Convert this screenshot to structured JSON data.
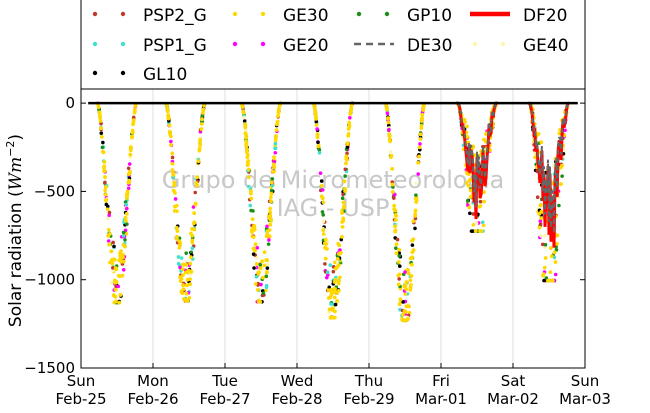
{
  "chart_data": {
    "type": "scatter",
    "ylabel": "Solar radiation (W m^-2)",
    "ylabel_parts": {
      "prefix": "Solar radiation (",
      "unit_italic": "Wm",
      "unit_exp": "−2",
      "suffix": ")"
    },
    "ylim": [
      -1500,
      80
    ],
    "yticks": [
      0,
      -500,
      -1000,
      -1500
    ],
    "ytick_labels": [
      "0",
      "−500",
      "−1000",
      "−1500"
    ],
    "xlim": [
      0,
      7
    ],
    "xticks": [
      {
        "x": 0,
        "day": "Sun",
        "date": "Feb-25"
      },
      {
        "x": 1,
        "day": "Mon",
        "date": "Feb-26"
      },
      {
        "x": 2,
        "day": "Tue",
        "date": "Feb-27"
      },
      {
        "x": 3,
        "day": "Wed",
        "date": "Feb-28"
      },
      {
        "x": 4,
        "day": "Thu",
        "date": "Feb-29"
      },
      {
        "x": 5,
        "day": "Fri",
        "date": "Mar-01"
      },
      {
        "x": 6,
        "day": "Sat",
        "date": "Mar-02"
      },
      {
        "x": 7,
        "day": "Sun",
        "date": "Mar-03"
      }
    ],
    "grid": {
      "vertical": true,
      "horizontal": false
    },
    "legend_position": "top",
    "legend_entries": [
      {
        "key": "psp2",
        "label": "PSP2_G",
        "color": "#c0392b",
        "style": "dots"
      },
      {
        "key": "ge30",
        "label": "GE30",
        "color": "#ffd800",
        "style": "dots"
      },
      {
        "key": "gp10",
        "label": "GP10",
        "color": "#1a8f1a",
        "style": "dots"
      },
      {
        "key": "df20",
        "label": "DF20",
        "color": "#ff0000",
        "style": "thick-line"
      },
      {
        "key": "psp1",
        "label": "PSP1_G",
        "color": "#40e0d0",
        "style": "dots"
      },
      {
        "key": "ge20",
        "label": "GE20",
        "color": "#ff00ff",
        "style": "dots"
      },
      {
        "key": "de30",
        "label": "DE30",
        "color": "#666666",
        "style": "dashed-line"
      },
      {
        "key": "ge40",
        "label": "GE40",
        "color": "#fff5b0",
        "style": "dots"
      },
      {
        "key": "gl10",
        "label": "GL10",
        "color": "#000000",
        "style": "dots"
      }
    ],
    "watermark": [
      "Grupo de Micrometeorologia",
      "IAG - USP"
    ],
    "daily_minimum_approx": [
      {
        "day": "Sun Feb-25",
        "x_center": 0.5,
        "min": -1130
      },
      {
        "day": "Mon Feb-26",
        "x_center": 1.45,
        "min": -1120
      },
      {
        "day": "Tue Feb-27",
        "x_center": 2.5,
        "min": -1125
      },
      {
        "day": "Wed Feb-28",
        "x_center": 3.5,
        "min": -1215
      },
      {
        "day": "Thu Feb-29",
        "x_center": 4.5,
        "min": -1230
      },
      {
        "day": "Fri Mar-01",
        "x_center": 5.5,
        "min": -725
      },
      {
        "day": "Sat Mar-02",
        "x_center": 6.5,
        "min": -1005
      }
    ],
    "series_color_hints": {
      "radiation_sensors_daytime_negative": true,
      "zero_line": "#000000"
    }
  }
}
